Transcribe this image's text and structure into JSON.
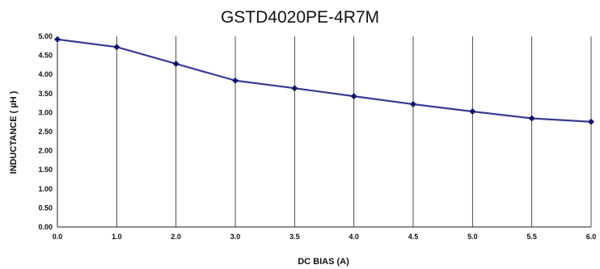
{
  "chart_data": {
    "type": "line",
    "title": "GSTD4020PE-4R7M",
    "xlabel": "DC BIAS (A)",
    "ylabel": "INDUCTANCE ( µH )",
    "x": [
      0.0,
      1.0,
      2.0,
      3.0,
      3.5,
      4.0,
      4.5,
      5.0,
      5.5,
      6.0
    ],
    "x_tick_labels": [
      "0.0",
      "1.0",
      "2.0",
      "3.0",
      "3.5",
      "4.0",
      "4.5",
      "5.0",
      "5.5",
      "6.0"
    ],
    "y_tick_labels": [
      "0.00",
      "0.50",
      "1.00",
      "1.50",
      "2.00",
      "2.50",
      "3.00",
      "3.50",
      "4.00",
      "4.50",
      "5.00"
    ],
    "ylim": [
      0,
      5
    ],
    "series": [
      {
        "values": [
          4.92,
          4.72,
          4.28,
          3.84,
          3.64,
          3.43,
          3.22,
          3.03,
          2.85,
          2.76
        ]
      }
    ],
    "grid": "vertical",
    "line_color": "#3b3b8f",
    "marker_color": "#14146e",
    "grid_color": "#222222"
  }
}
